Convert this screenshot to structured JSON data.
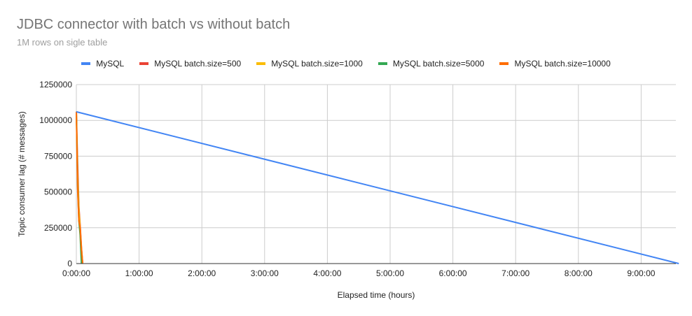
{
  "chart_data": {
    "type": "line",
    "title": "JDBC connector with batch vs without batch",
    "subtitle": "1M rows on sigle table",
    "xlabel": "Elapsed time (hours)",
    "ylabel": "Topic consumer lag (# messages)",
    "x_ticks": [
      "0:00:00",
      "1:00:00",
      "2:00:00",
      "3:00:00",
      "4:00:00",
      "5:00:00",
      "6:00:00",
      "7:00:00",
      "8:00:00",
      "9:00:00"
    ],
    "y_ticks": [
      "0",
      "250000",
      "500000",
      "750000",
      "1000000",
      "1250000"
    ],
    "xlim_hours": [
      0,
      9.6
    ],
    "ylim": [
      0,
      1250000
    ],
    "grid": true,
    "legend_position": "top",
    "series": [
      {
        "name": "MySQL",
        "color": "#4285f4",
        "x_hours": [
          0,
          9.6
        ],
        "values": [
          1060000,
          0
        ]
      },
      {
        "name": "MySQL batch.size=500",
        "color": "#ea4335",
        "x_hours": [
          0,
          0.02,
          0.04,
          0.06,
          0.08,
          0.1
        ],
        "values": [
          1060000,
          700000,
          400000,
          270000,
          120000,
          0
        ]
      },
      {
        "name": "MySQL batch.size=1000",
        "color": "#fbbc04",
        "x_hours": [
          0,
          0.02,
          0.04,
          0.06,
          0.08,
          0.1
        ],
        "values": [
          1060000,
          620000,
          380000,
          250000,
          110000,
          0
        ]
      },
      {
        "name": "MySQL batch.size=5000",
        "color": "#34a853",
        "x_hours": [
          0,
          0.02,
          0.04,
          0.06,
          0.08
        ],
        "values": [
          1060000,
          550000,
          300000,
          200000,
          0
        ]
      },
      {
        "name": "MySQL batch.size=10000",
        "color": "#ff6d01",
        "x_hours": [
          0,
          0.02,
          0.04,
          0.06,
          0.08,
          0.1
        ],
        "values": [
          1060000,
          520000,
          300000,
          250000,
          100000,
          0
        ]
      }
    ]
  }
}
